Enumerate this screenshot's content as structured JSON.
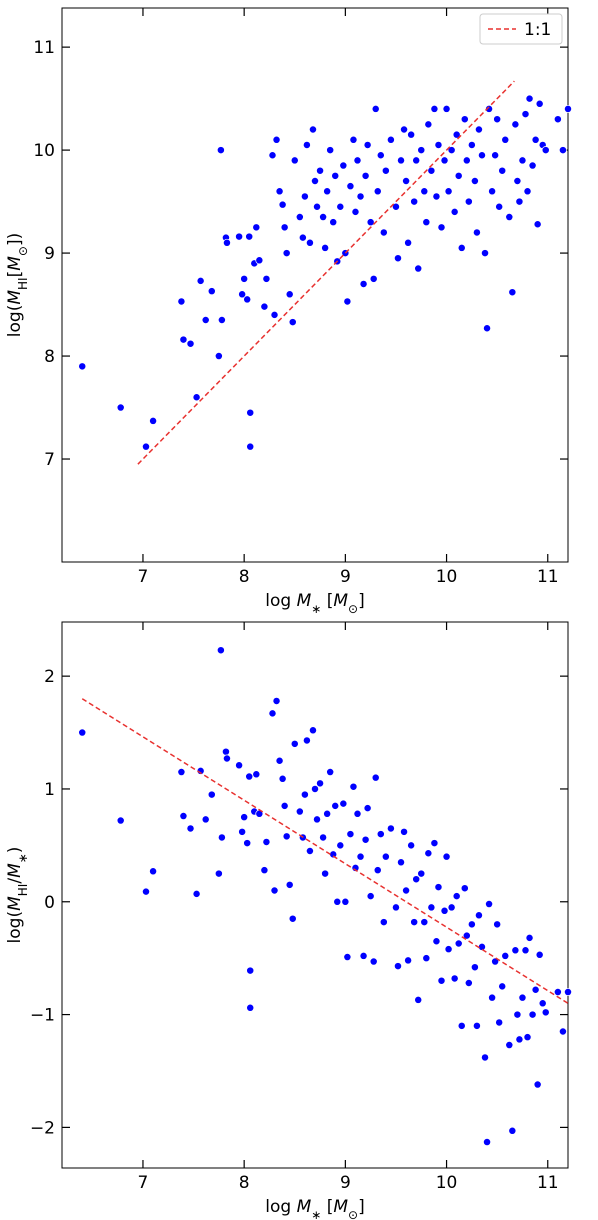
{
  "chart_data": [
    {
      "type": "scatter",
      "xlabel": [
        "log ",
        "M",
        "∗",
        " [",
        "M",
        "⊙",
        "]"
      ],
      "ylabel": [
        "log(",
        "M",
        "HI",
        "[",
        "M",
        "⊙",
        "])"
      ],
      "xlim": [
        6.2,
        11.2
      ],
      "ylim": [
        6.0,
        11.38
      ],
      "xticks": [
        7,
        8,
        9,
        10,
        11
      ],
      "yticks": [
        7,
        8,
        9,
        10,
        11
      ],
      "legend": "upper right",
      "series": [
        {
          "type": "scatter",
          "color": "#0000ff",
          "x": [
            6.4,
            6.78,
            7.03,
            7.1,
            7.38,
            7.4,
            7.47,
            7.53,
            7.57,
            7.62,
            7.68,
            7.75,
            7.78,
            7.77,
            7.82,
            7.83,
            7.95,
            7.98,
            8.0,
            8.03,
            8.05,
            8.06,
            8.06,
            8.1,
            8.12,
            8.15,
            8.2,
            8.22,
            8.28,
            8.3,
            8.32,
            8.35,
            8.38,
            8.4,
            8.42,
            8.45,
            8.5,
            8.48,
            8.55,
            8.58,
            8.6,
            8.62,
            8.65,
            8.68,
            8.7,
            8.72,
            8.75,
            8.78,
            8.8,
            8.82,
            8.85,
            8.88,
            8.9,
            8.92,
            8.95,
            8.98,
            9.0,
            9.02,
            9.05,
            9.08,
            9.1,
            9.12,
            9.15,
            9.18,
            9.2,
            9.22,
            9.25,
            9.28,
            9.3,
            9.32,
            9.35,
            9.38,
            9.4,
            9.45,
            9.5,
            9.52,
            9.55,
            9.58,
            9.6,
            9.62,
            9.65,
            9.68,
            9.7,
            9.72,
            9.75,
            9.78,
            9.8,
            9.82,
            9.85,
            9.88,
            9.9,
            9.92,
            9.95,
            9.98,
            10.0,
            10.02,
            10.05,
            10.08,
            10.1,
            10.12,
            10.15,
            10.18,
            10.2,
            10.22,
            10.25,
            10.28,
            10.3,
            10.32,
            10.35,
            10.38,
            10.4,
            10.42,
            10.45,
            10.48,
            10.5,
            10.52,
            10.55,
            10.58,
            10.62,
            10.65,
            10.68,
            10.7,
            10.72,
            10.75,
            10.78,
            10.8,
            10.82,
            10.85,
            10.88,
            10.9,
            10.92,
            10.95,
            10.98,
            11.1,
            11.15,
            11.2
          ],
          "values": [
            7.9,
            7.5,
            7.12,
            7.37,
            8.53,
            8.16,
            8.12,
            7.6,
            8.73,
            8.35,
            8.63,
            8.0,
            8.35,
            10.0,
            9.15,
            9.1,
            9.16,
            8.6,
            8.75,
            8.55,
            9.16,
            7.45,
            7.12,
            8.9,
            9.25,
            8.93,
            8.48,
            8.75,
            9.95,
            8.4,
            10.1,
            9.6,
            9.47,
            9.25,
            9.0,
            8.6,
            9.9,
            8.33,
            9.35,
            9.15,
            9.55,
            10.05,
            9.1,
            10.2,
            9.7,
            9.45,
            9.8,
            9.35,
            9.05,
            9.6,
            10.0,
            9.3,
            9.75,
            8.92,
            9.45,
            9.85,
            9.0,
            8.53,
            9.65,
            10.1,
            9.4,
            9.9,
            9.55,
            8.7,
            9.75,
            10.05,
            9.3,
            8.75,
            10.4,
            9.6,
            9.95,
            9.2,
            9.8,
            10.1,
            9.45,
            8.95,
            9.9,
            10.2,
            9.7,
            9.1,
            10.15,
            9.5,
            9.9,
            8.85,
            10.0,
            9.6,
            9.3,
            10.25,
            9.8,
            10.4,
            9.55,
            10.05,
            9.25,
            9.9,
            10.4,
            9.6,
            10.0,
            9.4,
            10.15,
            9.75,
            9.05,
            10.3,
            9.9,
            9.5,
            10.05,
            9.7,
            9.2,
            10.2,
            9.95,
            9.0,
            8.27,
            10.4,
            9.6,
            9.95,
            10.3,
            9.45,
            9.8,
            10.1,
            9.35,
            8.62,
            10.25,
            9.7,
            9.5,
            9.9,
            10.35,
            9.6,
            10.5,
            9.85,
            10.1,
            9.28,
            10.45,
            10.05,
            10.0,
            10.3,
            10.0,
            10.4
          ]
        },
        {
          "type": "line",
          "name": "1:1",
          "color": "#e8312f",
          "dashed": true,
          "x": [
            6.95,
            10.67
          ],
          "values": [
            6.95,
            10.67
          ]
        }
      ]
    },
    {
      "type": "scatter",
      "xlabel": [
        "log ",
        "M",
        "∗",
        " [",
        "M",
        "⊙",
        "]"
      ],
      "ylabel": [
        "log(",
        "M",
        "HI",
        "/",
        "M",
        "∗",
        ")"
      ],
      "xlim": [
        6.2,
        11.2
      ],
      "ylim": [
        -2.36,
        2.48
      ],
      "xticks": [
        7,
        8,
        9,
        10,
        11
      ],
      "yticks": [
        {
          "value": -2,
          "label": "−2"
        },
        {
          "value": -1,
          "label": "−1"
        },
        0,
        1,
        2
      ],
      "series": [
        {
          "type": "scatter",
          "color": "#0000ff",
          "x": [
            6.4,
            6.78,
            7.03,
            7.1,
            7.38,
            7.4,
            7.47,
            7.53,
            7.57,
            7.62,
            7.68,
            7.75,
            7.78,
            7.77,
            7.82,
            7.83,
            7.95,
            7.98,
            8.0,
            8.03,
            8.05,
            8.06,
            8.06,
            8.1,
            8.12,
            8.15,
            8.2,
            8.22,
            8.28,
            8.3,
            8.32,
            8.35,
            8.38,
            8.4,
            8.42,
            8.45,
            8.5,
            8.48,
            8.55,
            8.58,
            8.6,
            8.62,
            8.65,
            8.68,
            8.7,
            8.72,
            8.75,
            8.78,
            8.8,
            8.82,
            8.85,
            8.88,
            8.9,
            8.92,
            8.95,
            8.98,
            9.0,
            9.02,
            9.05,
            9.08,
            9.1,
            9.12,
            9.15,
            9.18,
            9.2,
            9.22,
            9.25,
            9.28,
            9.3,
            9.32,
            9.35,
            9.38,
            9.4,
            9.45,
            9.5,
            9.52,
            9.55,
            9.58,
            9.6,
            9.62,
            9.65,
            9.68,
            9.7,
            9.72,
            9.75,
            9.78,
            9.8,
            9.82,
            9.85,
            9.88,
            9.9,
            9.92,
            9.95,
            9.98,
            10.0,
            10.02,
            10.05,
            10.08,
            10.1,
            10.12,
            10.15,
            10.18,
            10.2,
            10.22,
            10.25,
            10.28,
            10.3,
            10.32,
            10.35,
            10.38,
            10.4,
            10.42,
            10.45,
            10.48,
            10.5,
            10.52,
            10.55,
            10.58,
            10.62,
            10.65,
            10.68,
            10.7,
            10.72,
            10.75,
            10.78,
            10.8,
            10.82,
            10.85,
            10.88,
            10.9,
            10.92,
            10.95,
            10.98,
            11.1,
            11.15,
            11.2
          ],
          "values": [
            1.5,
            0.72,
            0.09,
            0.27,
            1.15,
            0.76,
            0.65,
            0.07,
            1.16,
            0.73,
            0.95,
            0.25,
            0.57,
            2.23,
            1.33,
            1.27,
            1.21,
            0.62,
            0.75,
            0.52,
            1.11,
            -0.61,
            -0.94,
            0.8,
            1.13,
            0.78,
            0.28,
            0.53,
            1.67,
            0.1,
            1.78,
            1.25,
            1.09,
            0.85,
            0.58,
            0.15,
            1.4,
            -0.15,
            0.8,
            0.57,
            0.95,
            1.43,
            0.45,
            1.52,
            1.0,
            0.73,
            1.05,
            0.57,
            0.25,
            0.78,
            1.15,
            0.42,
            0.85,
            0,
            0.5,
            0.87,
            0,
            -0.49,
            0.6,
            1.02,
            0.3,
            0.78,
            0.4,
            -0.48,
            0.55,
            0.83,
            0.05,
            -0.53,
            1.1,
            0.28,
            0.6,
            -0.18,
            0.4,
            0.65,
            -0.05,
            -0.57,
            0.35,
            0.62,
            0.1,
            -0.52,
            0.5,
            -0.18,
            0.2,
            -0.87,
            0.25,
            -0.18,
            -0.5,
            0.43,
            -0.05,
            0.52,
            -0.35,
            0.13,
            -0.7,
            -0.08,
            0.4,
            -0.42,
            -0.05,
            -0.68,
            0.05,
            -0.37,
            -1.1,
            0.12,
            -0.3,
            -0.72,
            -0.2,
            -0.58,
            -1.1,
            -0.12,
            -0.4,
            -1.38,
            -2.13,
            -0.02,
            -0.85,
            -0.53,
            -0.2,
            -1.07,
            -0.75,
            -0.48,
            -1.27,
            -2.03,
            -0.43,
            -1.0,
            -1.22,
            -0.85,
            -0.43,
            -1.2,
            -0.32,
            -1.0,
            -0.78,
            -1.62,
            -0.47,
            -0.9,
            -0.98,
            -0.8,
            -1.15,
            -0.8
          ]
        },
        {
          "type": "line",
          "color": "#e8312f",
          "dashed": true,
          "x": [
            6.4,
            11.2
          ],
          "values": [
            1.8,
            -0.9
          ]
        }
      ]
    }
  ]
}
